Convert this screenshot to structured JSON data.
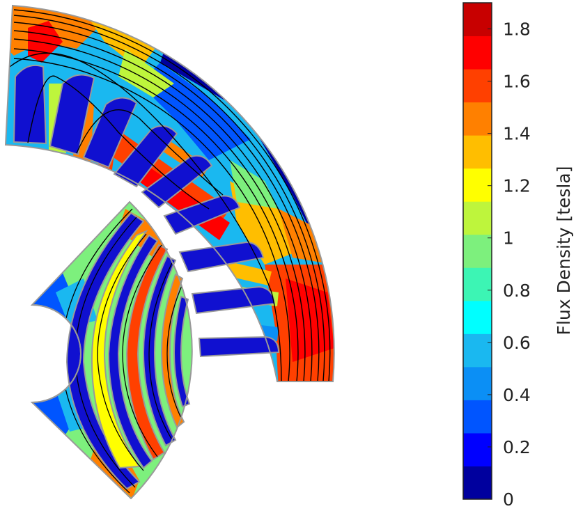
{
  "colorbar": {
    "label": "Flux Density [tesla]",
    "ticks": [
      "0",
      "0.2",
      "0.4",
      "0.6",
      "0.8",
      "1",
      "1.2",
      "1.4",
      "1.6",
      "1.8"
    ],
    "colors": [
      "#00009e",
      "#0000ff",
      "#0055ff",
      "#0b8ff5",
      "#1ab8f0",
      "#00ffff",
      "#3cf5b4",
      "#7df07d",
      "#bef53c",
      "#ffff00",
      "#ffbe00",
      "#ff8000",
      "#ff4000",
      "#ff0000",
      "#c80000"
    ],
    "range": [
      0,
      1.9
    ]
  },
  "palette": {
    "slot": "#1010d0",
    "outline": "#999999",
    "flux_line": "#000000"
  }
}
